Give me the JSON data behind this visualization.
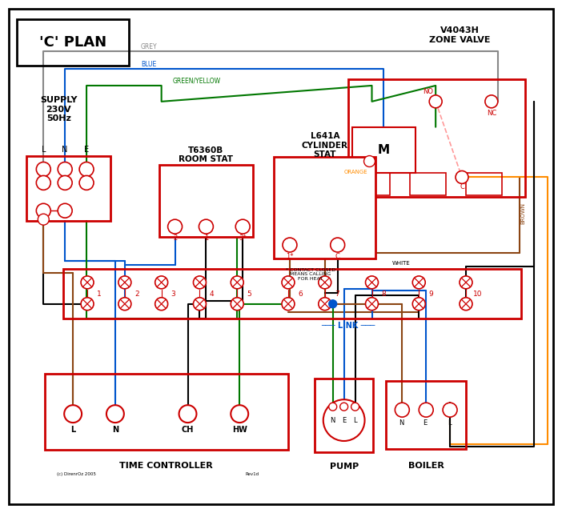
{
  "title": "'C' PLAN",
  "bg_color": "#ffffff",
  "red": "#cc0000",
  "black": "#000000",
  "blue": "#0055cc",
  "green": "#007700",
  "brown": "#8B4513",
  "grey": "#888888",
  "orange": "#FF8C00",
  "pink": "#ff9999",
  "supply_text": "SUPPLY\n230V\n50Hz",
  "zone_valve_title": "V4043H\nZONE VALVE",
  "room_stat_title": "T6360B\nROOM STAT",
  "cylinder_stat_title": "L641A\nCYLINDER\nSTAT",
  "time_ctrl_title": "TIME CONTROLLER",
  "pump_title": "PUMP",
  "boiler_title": "BOILER"
}
